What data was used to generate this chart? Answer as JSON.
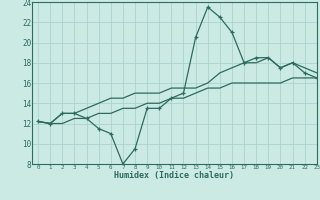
{
  "xlabel": "Humidex (Indice chaleur)",
  "bg_color": "#cceae4",
  "line_color": "#2d6b5e",
  "grid_color": "#aad4cc",
  "hours": [
    0,
    1,
    2,
    3,
    4,
    5,
    6,
    7,
    8,
    9,
    10,
    11,
    12,
    13,
    14,
    15,
    16,
    17,
    18,
    19,
    20,
    21,
    22,
    23
  ],
  "y_jagged": [
    12.2,
    12.0,
    13.0,
    13.0,
    12.5,
    11.5,
    11.0,
    8.0,
    9.5,
    13.5,
    13.5,
    14.5,
    15.0,
    20.5,
    23.5,
    22.5,
    21.0,
    18.0,
    18.5,
    18.5,
    17.5,
    18.0,
    17.0,
    16.5
  ],
  "y_upper": [
    12.2,
    12.0,
    13.0,
    13.0,
    13.5,
    14.0,
    14.5,
    14.5,
    15.0,
    15.0,
    15.0,
    15.5,
    15.5,
    15.5,
    16.0,
    17.0,
    17.5,
    18.0,
    18.0,
    18.5,
    17.5,
    18.0,
    17.5,
    17.0
  ],
  "y_lower": [
    12.2,
    12.0,
    12.0,
    12.5,
    12.5,
    13.0,
    13.0,
    13.5,
    13.5,
    14.0,
    14.0,
    14.5,
    14.5,
    15.0,
    15.5,
    15.5,
    16.0,
    16.0,
    16.0,
    16.0,
    16.0,
    16.5,
    16.5,
    16.5
  ],
  "ylim": [
    8,
    24
  ],
  "xlim": [
    -0.5,
    23
  ],
  "yticks": [
    8,
    10,
    12,
    14,
    16,
    18,
    20,
    22,
    24
  ],
  "xticks": [
    0,
    1,
    2,
    3,
    4,
    5,
    6,
    7,
    8,
    9,
    10,
    11,
    12,
    13,
    14,
    15,
    16,
    17,
    18,
    19,
    20,
    21,
    22,
    23
  ]
}
